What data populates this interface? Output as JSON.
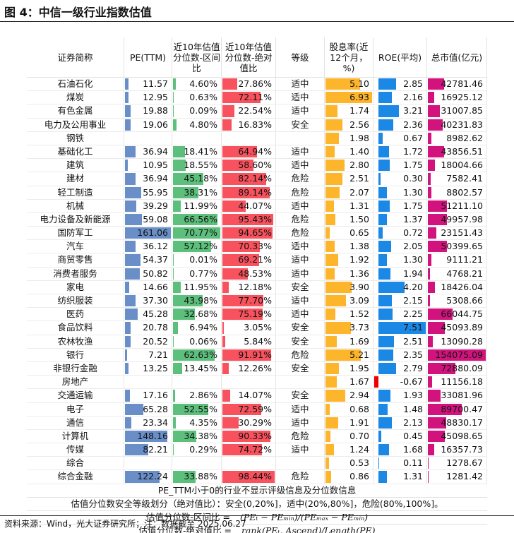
{
  "title": "图 4：中信一级行业指数估值",
  "headers": [
    "证券简称",
    "PE(TTM)",
    "近10年估值分位数-区间比",
    "近10年估值分位数-绝对值比",
    "等级",
    "股息率(近12个月，%)",
    "ROE(平均)",
    "总市值(亿元)"
  ],
  "colors": {
    "pe": "#6a8fc8",
    "interval": "#5dbf7c",
    "absolute": "#f7525d",
    "dividend": "#fdb52b",
    "roe": "#1c88e6",
    "roe_negative": "#ee0000",
    "mcap": "#d2137d"
  },
  "rows": [
    {
      "name": "石油石化",
      "pe": "11.57",
      "interval": "4.60%",
      "absolute": "27.86%",
      "grade": "适中",
      "dividend": "5.10",
      "roe": "2.85",
      "mcap": "42781.46"
    },
    {
      "name": "煤炭",
      "pe": "12.95",
      "interval": "0.63%",
      "absolute": "72.11%",
      "grade": "适中",
      "dividend": "6.93",
      "roe": "2.16",
      "mcap": "16925.12"
    },
    {
      "name": "有色金属",
      "pe": "19.88",
      "interval": "0.09%",
      "absolute": "22.54%",
      "grade": "适中",
      "dividend": "1.74",
      "roe": "3.21",
      "mcap": "31007.85"
    },
    {
      "name": "电力及公用事业",
      "pe": "19.06",
      "interval": "4.80%",
      "absolute": "16.83%",
      "grade": "安全",
      "dividend": "2.56",
      "roe": "2.36",
      "mcap": "40231.83"
    },
    {
      "name": "钢铁",
      "pe": "",
      "interval": "",
      "absolute": "",
      "grade": "",
      "dividend": "1.98",
      "roe": "0.67",
      "mcap": "8982.62"
    },
    {
      "name": "基础化工",
      "pe": "36.94",
      "interval": "18.41%",
      "absolute": "64.94%",
      "grade": "适中",
      "dividend": "1.40",
      "roe": "1.72",
      "mcap": "43856.51"
    },
    {
      "name": "建筑",
      "pe": "10.95",
      "interval": "18.55%",
      "absolute": "58.60%",
      "grade": "适中",
      "dividend": "2.80",
      "roe": "1.75",
      "mcap": "18004.66"
    },
    {
      "name": "建材",
      "pe": "36.94",
      "interval": "45.18%",
      "absolute": "82.14%",
      "grade": "危险",
      "dividend": "2.51",
      "roe": "0.30",
      "mcap": "7582.41"
    },
    {
      "name": "轻工制造",
      "pe": "55.95",
      "interval": "38.31%",
      "absolute": "89.14%",
      "grade": "危险",
      "dividend": "2.07",
      "roe": "1.30",
      "mcap": "8802.57"
    },
    {
      "name": "机械",
      "pe": "39.29",
      "interval": "11.99%",
      "absolute": "44.07%",
      "grade": "适中",
      "dividend": "1.31",
      "roe": "1.75",
      "mcap": "51211.10"
    },
    {
      "name": "电力设备及新能源",
      "pe": "59.08",
      "interval": "66.56%",
      "absolute": "95.43%",
      "grade": "危险",
      "dividend": "1.50",
      "roe": "1.37",
      "mcap": "49957.98"
    },
    {
      "name": "国防军工",
      "pe": "161.06",
      "interval": "70.77%",
      "absolute": "94.65%",
      "grade": "危险",
      "dividend": "0.65",
      "roe": "0.72",
      "mcap": "23151.43"
    },
    {
      "name": "汽车",
      "pe": "36.12",
      "interval": "57.12%",
      "absolute": "70.33%",
      "grade": "适中",
      "dividend": "1.38",
      "roe": "2.05",
      "mcap": "50399.65"
    },
    {
      "name": "商贸零售",
      "pe": "54.37",
      "interval": "0.01%",
      "absolute": "69.21%",
      "grade": "适中",
      "dividend": "1.92",
      "roe": "1.30",
      "mcap": "9111.21"
    },
    {
      "name": "消费者服务",
      "pe": "50.82",
      "interval": "0.77%",
      "absolute": "48.53%",
      "grade": "适中",
      "dividend": "1.36",
      "roe": "1.94",
      "mcap": "4768.21"
    },
    {
      "name": "家电",
      "pe": "14.66",
      "interval": "11.95%",
      "absolute": "12.18%",
      "grade": "安全",
      "dividend": "3.90",
      "roe": "4.20",
      "mcap": "18426.04"
    },
    {
      "name": "纺织服装",
      "pe": "37.30",
      "interval": "43.98%",
      "absolute": "77.70%",
      "grade": "适中",
      "dividend": "3.09",
      "roe": "2.15",
      "mcap": "5308.66"
    },
    {
      "name": "医药",
      "pe": "45.28",
      "interval": "32.68%",
      "absolute": "75.19%",
      "grade": "适中",
      "dividend": "1.52",
      "roe": "2.25",
      "mcap": "66044.75"
    },
    {
      "name": "食品饮料",
      "pe": "20.78",
      "interval": "6.94%",
      "absolute": "3.05%",
      "grade": "安全",
      "dividend": "3.73",
      "roe": "7.51",
      "mcap": "45093.89"
    },
    {
      "name": "农林牧渔",
      "pe": "20.52",
      "interval": "0.06%",
      "absolute": "5.84%",
      "grade": "安全",
      "dividend": "1.69",
      "roe": "2.51",
      "mcap": "13090.28"
    },
    {
      "name": "银行",
      "pe": "7.21",
      "interval": "62.63%",
      "absolute": "91.91%",
      "grade": "危险",
      "dividend": "5.21",
      "roe": "2.35",
      "mcap": "154075.09"
    },
    {
      "name": "非银行金融",
      "pe": "13.25",
      "interval": "13.45%",
      "absolute": "12.26%",
      "grade": "安全",
      "dividend": "1.95",
      "roe": "2.79",
      "mcap": "72880.09"
    },
    {
      "name": "房地产",
      "pe": "",
      "interval": "",
      "absolute": "",
      "grade": "",
      "dividend": "1.67",
      "roe": "-0.67",
      "mcap": "11156.18"
    },
    {
      "name": "交通运输",
      "pe": "17.16",
      "interval": "2.86%",
      "absolute": "14.07%",
      "grade": "安全",
      "dividend": "2.94",
      "roe": "1.93",
      "mcap": "33081.96"
    },
    {
      "name": "电子",
      "pe": "65.28",
      "interval": "52.55%",
      "absolute": "72.59%",
      "grade": "适中",
      "dividend": "0.68",
      "roe": "1.48",
      "mcap": "89700.47"
    },
    {
      "name": "通信",
      "pe": "23.34",
      "interval": "4.35%",
      "absolute": "30.29%",
      "grade": "适中",
      "dividend": "1.91",
      "roe": "2.13",
      "mcap": "48830.17"
    },
    {
      "name": "计算机",
      "pe": "148.16",
      "interval": "34.38%",
      "absolute": "90.33%",
      "grade": "危险",
      "dividend": "0.70",
      "roe": "0.45",
      "mcap": "45098.65"
    },
    {
      "name": "传媒",
      "pe": "82.21",
      "interval": "0.29%",
      "absolute": "74.72%",
      "grade": "适中",
      "dividend": "1.24",
      "roe": "1.68",
      "mcap": "16357.73"
    },
    {
      "name": "综合",
      "pe": "",
      "interval": "",
      "absolute": "",
      "grade": "",
      "dividend": "0.53",
      "roe": "0.11",
      "mcap": "1278.67"
    },
    {
      "name": "综合金融",
      "pe": "122.24",
      "interval": "33.88%",
      "absolute": "98.44%",
      "grade": "危险",
      "dividend": "0.86",
      "roe": "1.31",
      "mcap": "1281.42"
    }
  ],
  "notes": {
    "negative_pe": "PE_TTM小于0的行业不显示评级信息及分位数信息",
    "grading": "估值分位数安全等级划分（绝对值比）：安全(0,20%]，适中(20%,80%]，危险(80%,100%]。",
    "interval_label": "估值分位数-区间比 =",
    "interval_formula": "(PEₜ − PEₘᵢₙ)/(PEₘₐₓ − PEₘᵢₙ)",
    "absolute_label": "估值分位数-绝对值比 =",
    "absolute_formula": "rank(PEₜ, Ascend)/Length(PE)"
  },
  "source": "资料来源：Wind，光大证券研究所；注：数据截至 2025.06.27"
}
